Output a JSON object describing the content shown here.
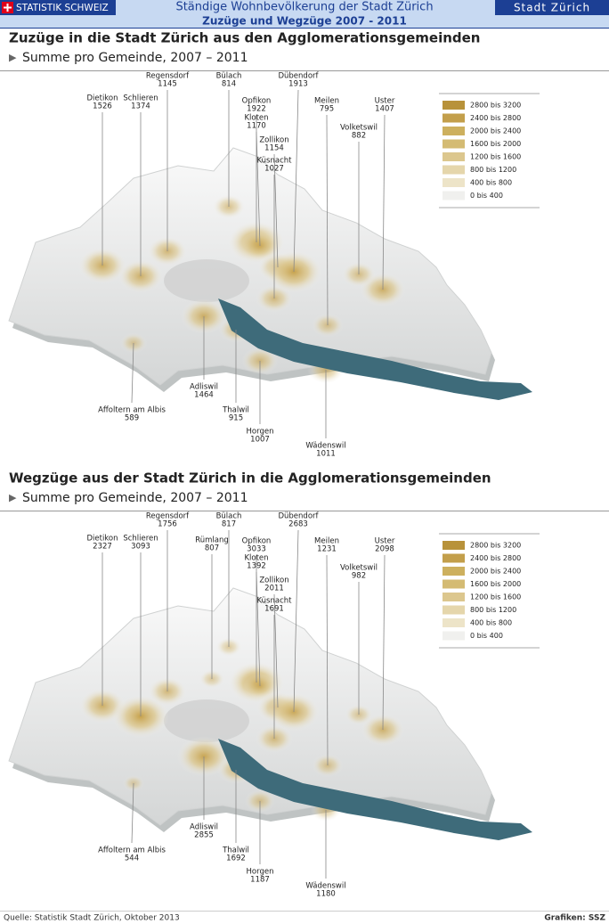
{
  "header": {
    "logo": "STATISTIK SCHWEIZ",
    "title": "Ständige Wohnbevölkerung der Stadt Zürich",
    "brand": "Stadt Zürich",
    "subtitle": "Zuzüge und Wegzüge 2007 - 2011"
  },
  "maps": [
    {
      "title": "Zuzüge in die Stadt Zürich aus den Agglomerationsgemeinden",
      "subtitle": "Summe pro Gemeinde, 2007 – 2011",
      "places": [
        {
          "name": "Dietikon",
          "value": 1526
        },
        {
          "name": "Schlieren",
          "value": 1374
        },
        {
          "name": "Regensdorf",
          "value": 1145
        },
        {
          "name": "Bülach",
          "value": 814
        },
        {
          "name": "Opfikon",
          "value": 1922
        },
        {
          "name": "Kloten",
          "value": 1170
        },
        {
          "name": "Zollikon",
          "value": 1154
        },
        {
          "name": "Küsnacht",
          "value": 1027
        },
        {
          "name": "Dübendorf",
          "value": 1913
        },
        {
          "name": "Meilen",
          "value": 795
        },
        {
          "name": "Uster",
          "value": 1407
        },
        {
          "name": "Volketswil",
          "value": 882
        },
        {
          "name": "Adliswil",
          "value": 1464
        },
        {
          "name": "Affoltern am Albis",
          "value": 589
        },
        {
          "name": "Thalwil",
          "value": 915
        },
        {
          "name": "Horgen",
          "value": 1007
        },
        {
          "name": "Wädenswil",
          "value": 1011
        }
      ],
      "legend": [
        {
          "label": "2800 bis 3200",
          "color": "#b8923a"
        },
        {
          "label": "2400 bis 2800",
          "color": "#c39f4b"
        },
        {
          "label": "2000 bis 2400",
          "color": "#cdb05e"
        },
        {
          "label": "1600 bis 2000",
          "color": "#d4bb73"
        },
        {
          "label": "1200 bis 1600",
          "color": "#dcc78e"
        },
        {
          "label": "800 bis 1200",
          "color": "#e5d6ab"
        },
        {
          "label": "400 bis 800",
          "color": "#ede4c8"
        },
        {
          "label": "0 bis 400",
          "color": "#f0f0ee"
        }
      ]
    },
    {
      "title": "Wegzüge aus der Stadt Zürich in die Agglomerationsgemeinden",
      "subtitle": "Summe pro Gemeinde, 2007 – 2011",
      "places": [
        {
          "name": "Dietikon",
          "value": 2327
        },
        {
          "name": "Schlieren",
          "value": 3093
        },
        {
          "name": "Regensdorf",
          "value": 1756
        },
        {
          "name": "Bülach",
          "value": 817
        },
        {
          "name": "Opfikon",
          "value": 3033
        },
        {
          "name": "Kloten",
          "value": 1392
        },
        {
          "name": "Zollikon",
          "value": 2011
        },
        {
          "name": "Küsnacht",
          "value": 1691
        },
        {
          "name": "Dübendorf",
          "value": 2683
        },
        {
          "name": "Meilen",
          "value": 1231
        },
        {
          "name": "Uster",
          "value": 2098
        },
        {
          "name": "Volketswil",
          "value": 982
        },
        {
          "name": "Adliswil",
          "value": 2855
        },
        {
          "name": "Affoltern am Albis",
          "value": 544
        },
        {
          "name": "Thalwil",
          "value": 1692
        },
        {
          "name": "Horgen",
          "value": 1187
        },
        {
          "name": "Wädenswil",
          "value": 1180
        },
        {
          "name": "Rümlang",
          "value": 807
        }
      ],
      "legend": [
        {
          "label": "2800 bis 3200",
          "color": "#b8923a"
        },
        {
          "label": "2400 bis 2800",
          "color": "#c39f4b"
        },
        {
          "label": "2000 bis 2400",
          "color": "#cdb05e"
        },
        {
          "label": "1600 bis 2000",
          "color": "#d4bb73"
        },
        {
          "label": "1200 bis 1600",
          "color": "#dcc78e"
        },
        {
          "label": "800 bis 1200",
          "color": "#e5d6ab"
        },
        {
          "label": "400 bis 800",
          "color": "#ede4c8"
        },
        {
          "label": "0 bis 400",
          "color": "#f0f0ee"
        }
      ]
    }
  ],
  "footer": {
    "source": "Quelle: Statistik Stadt Zürich, Oktober 2013",
    "credit": "Grafiken: SSZ"
  }
}
